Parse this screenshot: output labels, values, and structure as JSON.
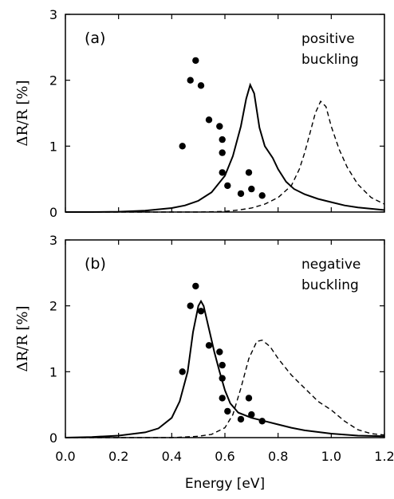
{
  "chart_data": {
    "type": "line",
    "xlabel": "Energy [eV]",
    "ylabel": "ΔR/R [%]",
    "xlim": [
      0.0,
      1.2
    ],
    "ylim": [
      0,
      3
    ],
    "x_ticks": [
      "0.0",
      "0.2",
      "0.4",
      "0.6",
      "0.8",
      "1.0",
      "1.2"
    ],
    "y_ticks": [
      "0",
      "1",
      "2",
      "3"
    ],
    "grid": false,
    "dots": [
      [
        0.44,
        1.0
      ],
      [
        0.47,
        2.0
      ],
      [
        0.49,
        2.3
      ],
      [
        0.51,
        1.92
      ],
      [
        0.54,
        1.4
      ],
      [
        0.58,
        1.3
      ],
      [
        0.59,
        1.1
      ],
      [
        0.59,
        0.9
      ],
      [
        0.59,
        0.6
      ],
      [
        0.61,
        0.4
      ],
      [
        0.66,
        0.28
      ],
      [
        0.69,
        0.6
      ],
      [
        0.7,
        0.35
      ],
      [
        0.74,
        0.25
      ]
    ],
    "panels": [
      {
        "label": "(a)",
        "annotation": [
          "positive",
          "buckling"
        ],
        "solid": [
          [
            0.0,
            0.0
          ],
          [
            0.1,
            0.0
          ],
          [
            0.2,
            0.005
          ],
          [
            0.3,
            0.02
          ],
          [
            0.4,
            0.06
          ],
          [
            0.45,
            0.1
          ],
          [
            0.5,
            0.17
          ],
          [
            0.55,
            0.3
          ],
          [
            0.6,
            0.55
          ],
          [
            0.63,
            0.85
          ],
          [
            0.66,
            1.3
          ],
          [
            0.68,
            1.72
          ],
          [
            0.695,
            1.93
          ],
          [
            0.71,
            1.8
          ],
          [
            0.73,
            1.28
          ],
          [
            0.75,
            1.0
          ],
          [
            0.78,
            0.82
          ],
          [
            0.8,
            0.65
          ],
          [
            0.83,
            0.46
          ],
          [
            0.86,
            0.35
          ],
          [
            0.9,
            0.27
          ],
          [
            0.95,
            0.2
          ],
          [
            1.0,
            0.15
          ],
          [
            1.05,
            0.1
          ],
          [
            1.1,
            0.07
          ],
          [
            1.15,
            0.05
          ],
          [
            1.2,
            0.03
          ]
        ],
        "dashed": [
          [
            0.0,
            0.0
          ],
          [
            0.5,
            0.0
          ],
          [
            0.6,
            0.01
          ],
          [
            0.65,
            0.03
          ],
          [
            0.7,
            0.06
          ],
          [
            0.75,
            0.12
          ],
          [
            0.8,
            0.22
          ],
          [
            0.85,
            0.4
          ],
          [
            0.88,
            0.65
          ],
          [
            0.9,
            0.9
          ],
          [
            0.92,
            1.2
          ],
          [
            0.94,
            1.5
          ],
          [
            0.96,
            1.68
          ],
          [
            0.98,
            1.6
          ],
          [
            1.0,
            1.3
          ],
          [
            1.03,
            0.95
          ],
          [
            1.06,
            0.68
          ],
          [
            1.1,
            0.42
          ],
          [
            1.15,
            0.22
          ],
          [
            1.2,
            0.12
          ]
        ]
      },
      {
        "label": "(b)",
        "annotation": [
          "negative",
          "buckling"
        ],
        "solid": [
          [
            0.0,
            0.0
          ],
          [
            0.1,
            0.01
          ],
          [
            0.2,
            0.03
          ],
          [
            0.3,
            0.08
          ],
          [
            0.35,
            0.14
          ],
          [
            0.4,
            0.3
          ],
          [
            0.43,
            0.55
          ],
          [
            0.46,
            1.0
          ],
          [
            0.48,
            1.6
          ],
          [
            0.5,
            2.0
          ],
          [
            0.51,
            2.07
          ],
          [
            0.52,
            2.0
          ],
          [
            0.54,
            1.65
          ],
          [
            0.56,
            1.3
          ],
          [
            0.58,
            1.0
          ],
          [
            0.6,
            0.72
          ],
          [
            0.62,
            0.52
          ],
          [
            0.65,
            0.38
          ],
          [
            0.7,
            0.3
          ],
          [
            0.75,
            0.25
          ],
          [
            0.8,
            0.2
          ],
          [
            0.85,
            0.15
          ],
          [
            0.9,
            0.11
          ],
          [
            1.0,
            0.06
          ],
          [
            1.1,
            0.03
          ],
          [
            1.2,
            0.02
          ]
        ],
        "dashed": [
          [
            0.0,
            0.0
          ],
          [
            0.4,
            0.0
          ],
          [
            0.5,
            0.02
          ],
          [
            0.55,
            0.05
          ],
          [
            0.6,
            0.15
          ],
          [
            0.63,
            0.35
          ],
          [
            0.66,
            0.75
          ],
          [
            0.69,
            1.2
          ],
          [
            0.72,
            1.46
          ],
          [
            0.74,
            1.48
          ],
          [
            0.77,
            1.38
          ],
          [
            0.8,
            1.2
          ],
          [
            0.85,
            0.95
          ],
          [
            0.9,
            0.75
          ],
          [
            0.95,
            0.55
          ],
          [
            1.0,
            0.42
          ],
          [
            1.05,
            0.25
          ],
          [
            1.1,
            0.12
          ],
          [
            1.15,
            0.06
          ],
          [
            1.2,
            0.04
          ]
        ]
      }
    ]
  }
}
